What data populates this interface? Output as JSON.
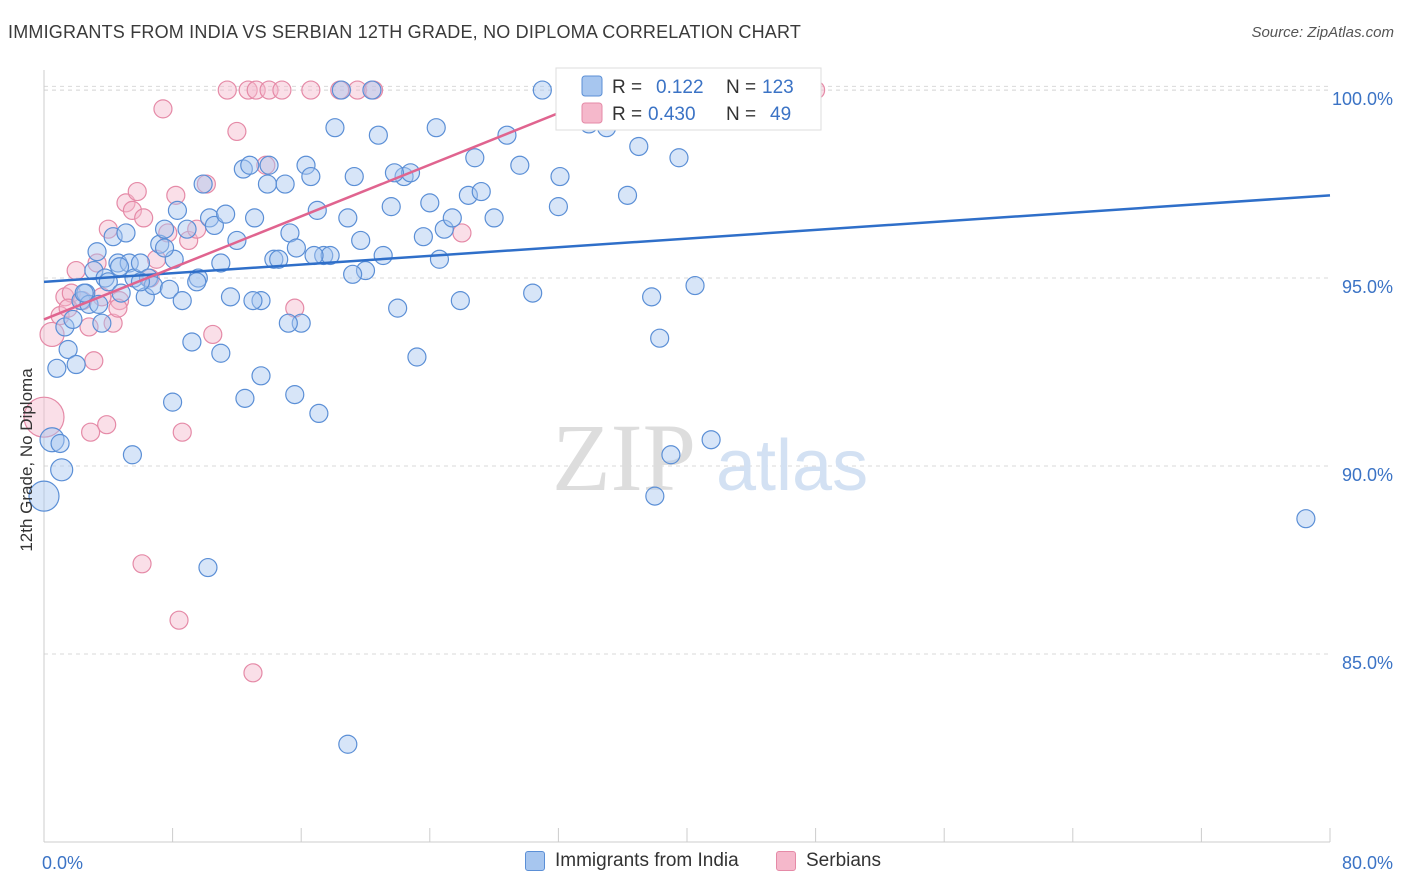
{
  "title": "IMMIGRANTS FROM INDIA VS SERBIAN 12TH GRADE, NO DIPLOMA CORRELATION CHART",
  "source": "Source: ZipAtlas.com",
  "watermark": {
    "zip": "ZIP",
    "atlas": "atlas"
  },
  "colors": {
    "india_fill": "#a7c6ef",
    "india_stroke": "#5b8fd6",
    "india_line": "#2f6fc9",
    "serb_fill": "#f5b8cb",
    "serb_stroke": "#e58aa7",
    "serb_line": "#e0648f",
    "axis_text": "#3b73c5",
    "grid": "#dadada"
  },
  "stats": [
    {
      "r_label": "R =",
      "r": "0.122",
      "n_label": "N =",
      "n": "123"
    },
    {
      "r_label": "R =",
      "r": "0.430",
      "n_label": "N =",
      "n": "49"
    }
  ],
  "chart_data": {
    "type": "scatter",
    "title": "IMMIGRANTS FROM INDIA VS SERBIAN 12TH GRADE, NO DIPLOMA CORRELATION CHART",
    "xlabel": "",
    "ylabel": "12th Grade, No Diploma",
    "xlim": [
      0,
      80
    ],
    "ylim": [
      80.0,
      100.8
    ],
    "x_tick_labels": [
      "0.0%",
      "80.0%"
    ],
    "y_ticks": [
      85,
      90,
      95,
      100
    ],
    "y_tick_labels": [
      "85.0%",
      "90.0%",
      "95.0%",
      "100.0%"
    ],
    "grid": true,
    "legend": [
      "Immigrants from India",
      "Serbians"
    ],
    "series": [
      {
        "name": "Immigrants from India",
        "trend": {
          "x": [
            0,
            80
          ],
          "y": [
            94.9,
            97.2
          ]
        },
        "points": [
          [
            0.0,
            89.2
          ],
          [
            0.5,
            90.7
          ],
          [
            0.8,
            92.6
          ],
          [
            1.1,
            89.9
          ],
          [
            1.3,
            93.7
          ],
          [
            1.5,
            93.1
          ],
          [
            1.8,
            93.9
          ],
          [
            2.0,
            92.7
          ],
          [
            2.3,
            94.4
          ],
          [
            2.6,
            94.6
          ],
          [
            2.8,
            94.3
          ],
          [
            3.1,
            95.2
          ],
          [
            3.3,
            95.7
          ],
          [
            3.6,
            93.8
          ],
          [
            3.8,
            95.0
          ],
          [
            4.0,
            94.9
          ],
          [
            4.3,
            96.1
          ],
          [
            4.6,
            95.4
          ],
          [
            4.8,
            94.6
          ],
          [
            5.1,
            96.2
          ],
          [
            5.3,
            95.4
          ],
          [
            5.6,
            95.0
          ],
          [
            6.0,
            95.4
          ],
          [
            6.3,
            94.5
          ],
          [
            6.5,
            95.0
          ],
          [
            6.8,
            94.8
          ],
          [
            7.2,
            95.9
          ],
          [
            7.5,
            96.3
          ],
          [
            7.8,
            94.7
          ],
          [
            8.1,
            95.5
          ],
          [
            8.3,
            96.8
          ],
          [
            8.6,
            94.4
          ],
          [
            8.9,
            96.3
          ],
          [
            9.2,
            93.3
          ],
          [
            9.6,
            95.0
          ],
          [
            9.9,
            97.5
          ],
          [
            10.3,
            96.6
          ],
          [
            10.6,
            96.4
          ],
          [
            11.0,
            95.4
          ],
          [
            11.3,
            96.7
          ],
          [
            11.6,
            94.5
          ],
          [
            12.0,
            96.0
          ],
          [
            12.4,
            97.9
          ],
          [
            12.8,
            98.0
          ],
          [
            13.1,
            96.6
          ],
          [
            13.5,
            94.4
          ],
          [
            13.9,
            97.5
          ],
          [
            14.3,
            95.5
          ],
          [
            14.6,
            95.5
          ],
          [
            15.0,
            97.5
          ],
          [
            15.3,
            96.2
          ],
          [
            15.7,
            95.8
          ],
          [
            16.0,
            93.8
          ],
          [
            16.3,
            98.0
          ],
          [
            16.6,
            97.7
          ],
          [
            17.0,
            96.8
          ],
          [
            17.4,
            95.6
          ],
          [
            17.8,
            95.6
          ],
          [
            18.1,
            99.0
          ],
          [
            18.5,
            100.0
          ],
          [
            18.9,
            96.6
          ],
          [
            19.3,
            97.7
          ],
          [
            19.7,
            96.0
          ],
          [
            20.0,
            95.2
          ],
          [
            20.4,
            100.0
          ],
          [
            20.8,
            98.8
          ],
          [
            21.1,
            95.6
          ],
          [
            21.6,
            96.9
          ],
          [
            22.0,
            94.2
          ],
          [
            22.4,
            97.7
          ],
          [
            22.8,
            97.8
          ],
          [
            23.2,
            92.9
          ],
          [
            23.6,
            96.1
          ],
          [
            24.0,
            97.0
          ],
          [
            24.4,
            99.0
          ],
          [
            24.9,
            96.3
          ],
          [
            25.4,
            96.6
          ],
          [
            25.9,
            94.4
          ],
          [
            26.4,
            97.2
          ],
          [
            26.8,
            98.2
          ],
          [
            27.2,
            97.3
          ],
          [
            28.0,
            96.6
          ],
          [
            28.8,
            98.8
          ],
          [
            29.6,
            98.0
          ],
          [
            30.4,
            94.6
          ],
          [
            31.0,
            100.0
          ],
          [
            32.1,
            97.7
          ],
          [
            32.0,
            96.9
          ],
          [
            33.9,
            99.1
          ],
          [
            35.0,
            99.0
          ],
          [
            36.3,
            97.2
          ],
          [
            37.0,
            98.5
          ],
          [
            37.8,
            94.5
          ],
          [
            38.3,
            93.4
          ],
          [
            39.0,
            90.3
          ],
          [
            39.5,
            98.2
          ],
          [
            38.0,
            89.2
          ],
          [
            40.5,
            94.8
          ],
          [
            41.5,
            90.7
          ],
          [
            1.0,
            90.6
          ],
          [
            5.5,
            90.3
          ],
          [
            8.0,
            91.7
          ],
          [
            10.2,
            87.3
          ],
          [
            12.5,
            91.8
          ],
          [
            13.5,
            92.4
          ],
          [
            15.6,
            91.9
          ],
          [
            17.1,
            91.4
          ],
          [
            18.9,
            82.6
          ],
          [
            15.2,
            93.8
          ],
          [
            13.0,
            94.4
          ],
          [
            11.0,
            93.0
          ],
          [
            9.5,
            94.9
          ],
          [
            7.5,
            95.8
          ],
          [
            6.0,
            94.9
          ],
          [
            4.7,
            95.3
          ],
          [
            3.4,
            94.3
          ],
          [
            2.5,
            94.6
          ],
          [
            21.8,
            97.8
          ],
          [
            16.8,
            95.6
          ],
          [
            19.2,
            95.1
          ],
          [
            24.6,
            95.5
          ],
          [
            14.0,
            98.0
          ],
          [
            78.5,
            88.6
          ]
        ]
      },
      {
        "name": "Serbians",
        "trend": {
          "x": [
            0,
            35.0
          ],
          "y": [
            93.9,
            99.9
          ]
        },
        "points": [
          [
            0.0,
            91.3
          ],
          [
            0.5,
            93.5
          ],
          [
            1.0,
            94.0
          ],
          [
            1.3,
            94.5
          ],
          [
            1.7,
            94.6
          ],
          [
            2.0,
            95.2
          ],
          [
            2.4,
            94.4
          ],
          [
            2.8,
            93.7
          ],
          [
            3.1,
            92.8
          ],
          [
            3.3,
            95.4
          ],
          [
            3.6,
            94.5
          ],
          [
            4.0,
            96.3
          ],
          [
            4.3,
            93.8
          ],
          [
            4.7,
            94.4
          ],
          [
            5.1,
            97.0
          ],
          [
            5.5,
            96.8
          ],
          [
            5.8,
            97.3
          ],
          [
            6.2,
            96.6
          ],
          [
            6.6,
            95.0
          ],
          [
            7.0,
            95.5
          ],
          [
            7.4,
            99.5
          ],
          [
            7.7,
            96.2
          ],
          [
            8.2,
            97.2
          ],
          [
            8.6,
            90.9
          ],
          [
            9.0,
            96.0
          ],
          [
            9.5,
            96.3
          ],
          [
            10.1,
            97.5
          ],
          [
            10.5,
            93.5
          ],
          [
            11.4,
            100.0
          ],
          [
            12.0,
            98.9
          ],
          [
            12.7,
            100.0
          ],
          [
            13.2,
            100.0
          ],
          [
            13.8,
            98.0
          ],
          [
            14.0,
            100.0
          ],
          [
            14.8,
            100.0
          ],
          [
            15.6,
            94.2
          ],
          [
            16.6,
            100.0
          ],
          [
            18.4,
            100.0
          ],
          [
            19.5,
            100.0
          ],
          [
            20.5,
            100.0
          ],
          [
            26.0,
            96.2
          ],
          [
            48.0,
            100.0
          ],
          [
            6.1,
            87.4
          ],
          [
            8.4,
            85.9
          ],
          [
            13.0,
            84.5
          ],
          [
            2.9,
            90.9
          ],
          [
            3.9,
            91.1
          ],
          [
            1.5,
            94.2
          ],
          [
            4.6,
            94.2
          ]
        ]
      }
    ]
  }
}
